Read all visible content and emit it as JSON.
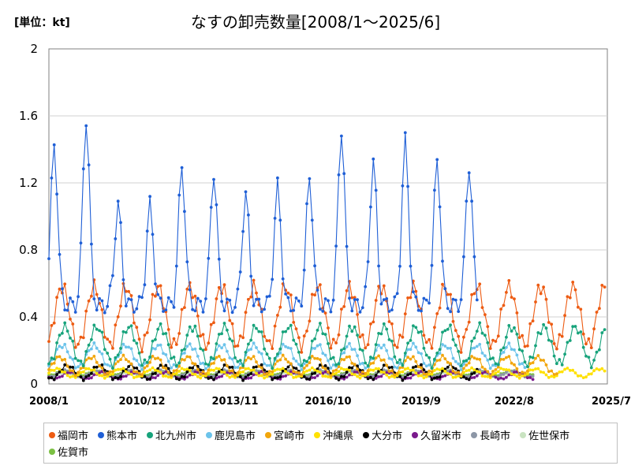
{
  "chart_data": {
    "type": "line",
    "title": "なすの卸売数量[2008/1～2025/6]",
    "unit_label": "[単位：kt]",
    "xlabel": "",
    "ylabel": "",
    "ylim": [
      0,
      2
    ],
    "yticks": [
      "0",
      "0.4",
      "0.8",
      "1.2",
      "1.6",
      "2"
    ],
    "xtick_labels": [
      "2008/1",
      "2010/12",
      "2013/11",
      "2016/10",
      "2019/9",
      "2022/8",
      "2025/7"
    ],
    "x_range": [
      "2008/1",
      "2025/7"
    ],
    "grid": "horizontal",
    "legend_position": "bottom",
    "series": [
      {
        "name": "福岡市",
        "color": "#ed5b12",
        "start": "2008/1",
        "end": "2025/6",
        "base": 0.23,
        "amp": 0.35,
        "peak_month": 5
      },
      {
        "name": "熊本市",
        "color": "#1f5fd6",
        "start": "2008/1",
        "end": "2021/6",
        "base": 0.47,
        "peaks": [
          1.44,
          1.59,
          1.08,
          1.07,
          1.3,
          1.27,
          1.14,
          1.18,
          1.23,
          1.53,
          1.34,
          1.45,
          1.34,
          1.31
        ]
      },
      {
        "name": "北九州市",
        "color": "#17a37b",
        "start": "2008/1",
        "end": "2025/6",
        "base": 0.12,
        "amp": 0.22,
        "peak_month": 6
      },
      {
        "name": "鹿児島市",
        "color": "#6cc3ea",
        "start": "2008/1",
        "end": "2022/12",
        "base": 0.1,
        "amp": 0.13,
        "peak_month": 5
      },
      {
        "name": "宮崎市",
        "color": "#f2a60c",
        "start": "2008/1",
        "end": "2023/12",
        "base": 0.06,
        "amp": 0.1,
        "peak_month": 4
      },
      {
        "name": "沖縄県",
        "color": "#ffe100",
        "start": "2008/1",
        "end": "2025/6",
        "base": 0.04,
        "amp": 0.05,
        "peak_month": 3
      },
      {
        "name": "大分市",
        "color": "#000000",
        "start": "2008/1",
        "end": "2021/6",
        "base": 0.03,
        "amp": 0.08,
        "peak_month": 7
      },
      {
        "name": "久留米市",
        "color": "#7a1a8c",
        "start": "2008/1",
        "end": "2023/3",
        "base": 0.03,
        "amp": 0.04,
        "peak_month": 8
      },
      {
        "name": "長崎市",
        "color": "#8c96a6",
        "start": "2008/1",
        "end": "2023/3",
        "base": 0.04,
        "amp": 0.04,
        "peak_month": 6
      },
      {
        "name": "佐世保市",
        "color": "#c9e3c1",
        "start": "2008/1",
        "end": "2023/3",
        "base": 0.04,
        "amp": 0.03,
        "peak_month": 6
      },
      {
        "name": "佐賀市",
        "color": "#7bc043",
        "start": "2008/1",
        "end": "2023/3",
        "base": 0.05,
        "amp": 0.03,
        "peak_month": 6
      }
    ]
  }
}
